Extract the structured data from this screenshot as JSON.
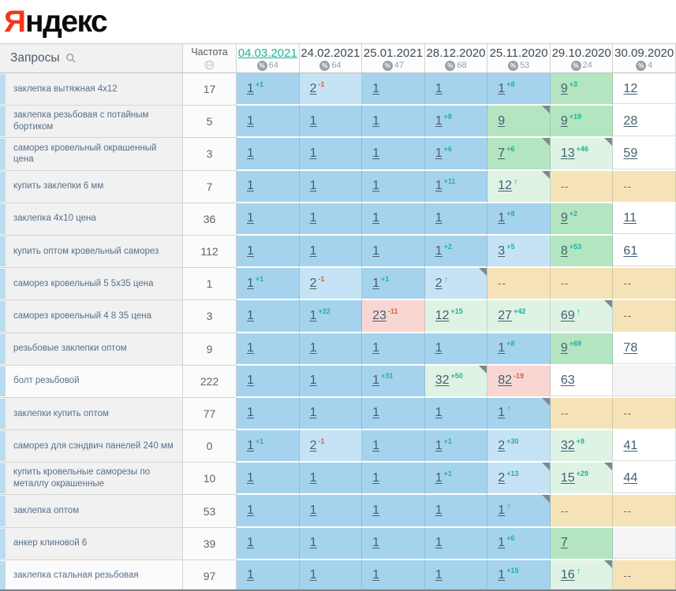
{
  "logo": {
    "red_letter": "Я",
    "black_letters": "ндекс"
  },
  "header": {
    "queries_label": "Запросы",
    "frequency_label": "Частота",
    "dates": [
      {
        "label": "04.03.2021",
        "percent": "64",
        "active": true
      },
      {
        "label": "24.02.2021",
        "percent": "64"
      },
      {
        "label": "25.01.2021",
        "percent": "47"
      },
      {
        "label": "28.12.2020",
        "percent": "68"
      },
      {
        "label": "25.11.2020",
        "percent": "53"
      },
      {
        "label": "29.10.2020",
        "percent": "24"
      },
      {
        "label": "30.09.2020",
        "percent": "4"
      }
    ]
  },
  "rows": [
    {
      "query": "заклепка вытяжная 4x12",
      "frequency": "17",
      "cells": [
        {
          "v": "1",
          "chg": "+1",
          "bg": "b1"
        },
        {
          "v": "2",
          "chg": "-1",
          "bg": "b2"
        },
        {
          "v": "1",
          "bg": "b1"
        },
        {
          "v": "1",
          "bg": "b1"
        },
        {
          "v": "1",
          "chg": "+8",
          "bg": "b1"
        },
        {
          "v": "9",
          "chg": "+3",
          "bg": "g"
        },
        {
          "v": "12",
          "bg": "wh"
        }
      ]
    },
    {
      "query": "заклепка резьбовая с потайным бортиком",
      "frequency": "5",
      "cells": [
        {
          "v": "1",
          "bg": "b1"
        },
        {
          "v": "1",
          "bg": "b1"
        },
        {
          "v": "1",
          "bg": "b1"
        },
        {
          "v": "1",
          "chg": "+8",
          "bg": "b1"
        },
        {
          "v": "9",
          "bg": "g",
          "corner": true
        },
        {
          "v": "9",
          "chg": "+19",
          "bg": "g"
        },
        {
          "v": "28",
          "bg": "wh"
        }
      ]
    },
    {
      "query": "саморез кровельный окрашенный цена",
      "frequency": "3",
      "cells": [
        {
          "v": "1",
          "bg": "b1"
        },
        {
          "v": "1",
          "bg": "b1"
        },
        {
          "v": "1",
          "bg": "b1"
        },
        {
          "v": "1",
          "chg": "+6",
          "bg": "b1"
        },
        {
          "v": "7",
          "chg": "+6",
          "bg": "g",
          "corner": true
        },
        {
          "v": "13",
          "chg": "+46",
          "bg": "lg",
          "corner": true
        },
        {
          "v": "59",
          "bg": "wh"
        }
      ]
    },
    {
      "query": "купить заклепки 6 мм",
      "frequency": "7",
      "cells": [
        {
          "v": "1",
          "bg": "b1"
        },
        {
          "v": "1",
          "bg": "b1"
        },
        {
          "v": "1",
          "bg": "b1"
        },
        {
          "v": "1",
          "chg": "+11",
          "bg": "b1"
        },
        {
          "v": "12",
          "chg": "up",
          "bg": "lg",
          "corner": true
        },
        {
          "v": "--",
          "bg": "tn"
        },
        {
          "v": "--",
          "bg": "tn"
        }
      ]
    },
    {
      "query": "заклепка 4x10 цена",
      "frequency": "36",
      "cells": [
        {
          "v": "1",
          "bg": "b1"
        },
        {
          "v": "1",
          "bg": "b1"
        },
        {
          "v": "1",
          "bg": "b1"
        },
        {
          "v": "1",
          "bg": "b1"
        },
        {
          "v": "1",
          "chg": "+8",
          "bg": "b1"
        },
        {
          "v": "9",
          "chg": "+2",
          "bg": "g"
        },
        {
          "v": "11",
          "bg": "wh"
        }
      ]
    },
    {
      "query": "купить оптом кровельный саморез",
      "frequency": "112",
      "cells": [
        {
          "v": "1",
          "bg": "b1"
        },
        {
          "v": "1",
          "bg": "b1"
        },
        {
          "v": "1",
          "bg": "b1"
        },
        {
          "v": "1",
          "chg": "+2",
          "bg": "b1"
        },
        {
          "v": "3",
          "chg": "+5",
          "bg": "b2"
        },
        {
          "v": "8",
          "chg": "+53",
          "bg": "g"
        },
        {
          "v": "61",
          "bg": "wh"
        }
      ]
    },
    {
      "query": "саморез кровельный 5 5x35 цена",
      "frequency": "1",
      "cells": [
        {
          "v": "1",
          "chg": "+1",
          "bg": "b1"
        },
        {
          "v": "2",
          "chg": "-1",
          "bg": "b2"
        },
        {
          "v": "1",
          "chg": "+1",
          "bg": "b1"
        },
        {
          "v": "2",
          "chg": "up",
          "bg": "b2",
          "corner": true
        },
        {
          "v": "--",
          "bg": "tn"
        },
        {
          "v": "--",
          "bg": "tn"
        },
        {
          "v": "--",
          "bg": "tn"
        }
      ]
    },
    {
      "query": "саморез кровельный 4 8 35 цена",
      "frequency": "3",
      "cells": [
        {
          "v": "1",
          "bg": "b1"
        },
        {
          "v": "1",
          "chg": "+22",
          "bg": "b1"
        },
        {
          "v": "23",
          "chg": "-11",
          "bg": "pk"
        },
        {
          "v": "12",
          "chg": "+15",
          "bg": "lg"
        },
        {
          "v": "27",
          "chg": "+42",
          "bg": "lg"
        },
        {
          "v": "69",
          "chg": "up",
          "bg": "lg",
          "corner": true
        },
        {
          "v": "--",
          "bg": "tn"
        }
      ]
    },
    {
      "query": "резьбовые заклепки оптом",
      "frequency": "9",
      "cells": [
        {
          "v": "1",
          "bg": "b1"
        },
        {
          "v": "1",
          "bg": "b1"
        },
        {
          "v": "1",
          "bg": "b1"
        },
        {
          "v": "1",
          "bg": "b1"
        },
        {
          "v": "1",
          "chg": "+8",
          "bg": "b1"
        },
        {
          "v": "9",
          "chg": "+69",
          "bg": "g"
        },
        {
          "v": "78",
          "bg": "wh"
        }
      ]
    },
    {
      "query": "болт резьбовой",
      "frequency": "222",
      "light": true,
      "cells": [
        {
          "v": "1",
          "bg": "b1"
        },
        {
          "v": "1",
          "bg": "b1"
        },
        {
          "v": "1",
          "chg": "+31",
          "bg": "b1"
        },
        {
          "v": "32",
          "chg": "+50",
          "bg": "lg",
          "corner": true
        },
        {
          "v": "82",
          "chg": "-19",
          "bg": "pk"
        },
        {
          "v": "63",
          "bg": "wh"
        },
        {
          "v": "",
          "bg": "gy"
        }
      ]
    },
    {
      "query": "заклепки купить оптом",
      "frequency": "77",
      "cells": [
        {
          "v": "1",
          "bg": "b1"
        },
        {
          "v": "1",
          "bg": "b1"
        },
        {
          "v": "1",
          "bg": "b1"
        },
        {
          "v": "1",
          "bg": "b1"
        },
        {
          "v": "1",
          "chg": "up",
          "bg": "b1",
          "corner": true
        },
        {
          "v": "--",
          "bg": "tn"
        },
        {
          "v": "--",
          "bg": "tn"
        }
      ]
    },
    {
      "query": "саморез для сэндвич панелей 240 мм",
      "frequency": "0",
      "cells": [
        {
          "v": "1",
          "chg": "+1",
          "bg": "b1"
        },
        {
          "v": "2",
          "chg": "-1",
          "bg": "b2"
        },
        {
          "v": "1",
          "bg": "b1"
        },
        {
          "v": "1",
          "chg": "+1",
          "bg": "b1"
        },
        {
          "v": "2",
          "chg": "+30",
          "bg": "b2"
        },
        {
          "v": "32",
          "chg": "+9",
          "bg": "lg"
        },
        {
          "v": "41",
          "bg": "wh"
        }
      ]
    },
    {
      "query": "купить кровельные саморезы по металлу окрашенные",
      "frequency": "10",
      "cells": [
        {
          "v": "1",
          "bg": "b1"
        },
        {
          "v": "1",
          "bg": "b1"
        },
        {
          "v": "1",
          "bg": "b1"
        },
        {
          "v": "1",
          "chg": "+1",
          "bg": "b1"
        },
        {
          "v": "2",
          "chg": "+13",
          "bg": "b2",
          "corner": true
        },
        {
          "v": "15",
          "chg": "+29",
          "bg": "lg",
          "corner": true
        },
        {
          "v": "44",
          "bg": "wh"
        }
      ]
    },
    {
      "query": "заклепка оптом",
      "frequency": "53",
      "cells": [
        {
          "v": "1",
          "bg": "b1"
        },
        {
          "v": "1",
          "bg": "b1"
        },
        {
          "v": "1",
          "bg": "b1"
        },
        {
          "v": "1",
          "bg": "b1"
        },
        {
          "v": "1",
          "chg": "up",
          "bg": "b1",
          "corner": true
        },
        {
          "v": "--",
          "bg": "tn"
        },
        {
          "v": "--",
          "bg": "tn"
        }
      ]
    },
    {
      "query": "анкер клиновой 6",
      "frequency": "39",
      "cells": [
        {
          "v": "1",
          "bg": "b1"
        },
        {
          "v": "1",
          "bg": "b1"
        },
        {
          "v": "1",
          "bg": "b1"
        },
        {
          "v": "1",
          "bg": "b1"
        },
        {
          "v": "1",
          "chg": "+6",
          "bg": "b1"
        },
        {
          "v": "7",
          "bg": "g"
        },
        {
          "v": "",
          "bg": "gy"
        }
      ]
    },
    {
      "query": "заклепка стальная резьбовая",
      "frequency": "97",
      "light": true,
      "cells": [
        {
          "v": "1",
          "bg": "b1"
        },
        {
          "v": "1",
          "bg": "b1"
        },
        {
          "v": "1",
          "bg": "b1"
        },
        {
          "v": "1",
          "bg": "b1"
        },
        {
          "v": "1",
          "chg": "+15",
          "bg": "b1"
        },
        {
          "v": "16",
          "chg": "up",
          "bg": "lg",
          "corner": true
        },
        {
          "v": "--",
          "bg": "tn"
        }
      ]
    }
  ],
  "colors": {
    "logo_red": "#f5351d",
    "active_date_teal": "#1fb29a",
    "rank_up_green": "#1cb398",
    "rank_down_red": "#e25749",
    "pos_top_blue": "#a5d3ee",
    "pos_light_blue": "#c6e3f5",
    "pos_green": "#b3e5c1",
    "pos_light_green": "#def3e4",
    "pos_drop_pink": "#f8d7d3",
    "no_data_tan": "#f5e3b7",
    "position_link": "#42606f"
  }
}
